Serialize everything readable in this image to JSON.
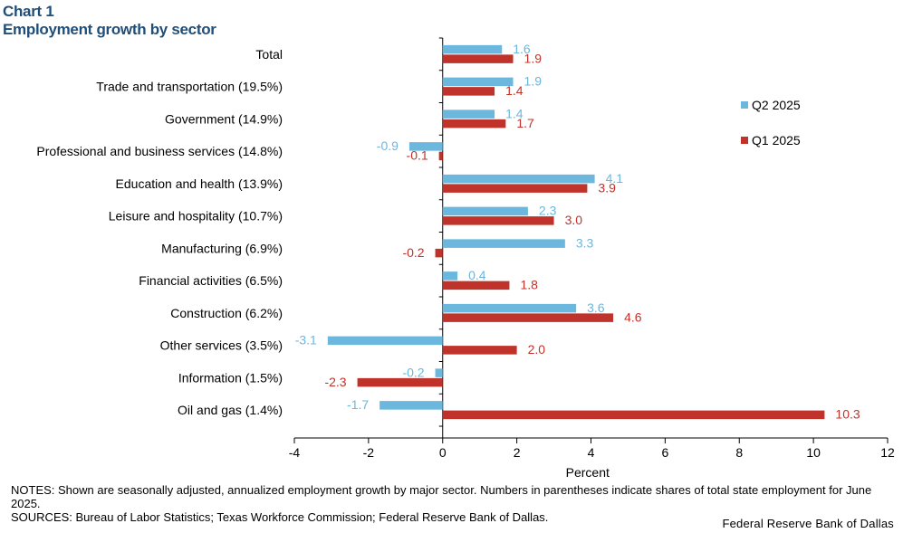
{
  "header": {
    "chart_label": "Chart 1",
    "title": "Employment growth by sector"
  },
  "colors": {
    "q2": "#6bb7dd",
    "q1": "#c0332a",
    "title": "#1f4e79"
  },
  "chart_data": {
    "type": "bar",
    "orientation": "horizontal",
    "title": "Employment growth by sector",
    "xlabel": "Percent",
    "ylabel": "",
    "xlim": [
      -4,
      12
    ],
    "xticks": [
      -4,
      -2,
      0,
      2,
      4,
      6,
      8,
      10,
      12
    ],
    "grid": false,
    "legend_position": "top-right",
    "categories": [
      "Total",
      "Trade and transportation (19.5%)",
      "Government (14.9%)",
      "Professional and business services (14.8%)",
      "Education and health (13.9%)",
      "Leisure and hospitality (10.7%)",
      "Manufacturing (6.9%)",
      "Financial activities (6.5%)",
      "Construction (6.2%)",
      "Other services (3.5%)",
      "Information (1.5%)",
      "Oil and gas (1.4%)"
    ],
    "series": [
      {
        "name": "Q2 2025",
        "values": [
          1.6,
          1.9,
          1.4,
          -0.9,
          4.1,
          2.3,
          3.3,
          0.4,
          3.6,
          -3.1,
          -0.2,
          -1.7
        ],
        "labels": [
          "1.6",
          "1.9",
          "1.4",
          "-0.9",
          "4.1",
          "2.3",
          "3.3",
          "0.4",
          "3.6",
          "-3.1",
          "-0.2",
          "-1.7"
        ]
      },
      {
        "name": "Q1 2025",
        "values": [
          1.9,
          1.4,
          1.7,
          -0.1,
          3.9,
          3.0,
          -0.2,
          1.8,
          4.6,
          2.0,
          -2.3,
          10.3
        ],
        "labels": [
          "1.9",
          "1.4",
          "1.7",
          "-0.1",
          "3.9",
          "3.0",
          "-0.2",
          "1.8",
          "4.6",
          "2.0",
          "-2.3",
          "10.3"
        ]
      }
    ]
  },
  "footer": {
    "notes": "NOTES: Shown are seasonally adjusted, annualized employment growth by major sector. Numbers in parentheses indicate shares of total state employment for June 2025.",
    "sources": "SOURCES: Bureau of Labor Statistics; Texas Workforce Commission; Federal Reserve Bank of Dallas.",
    "credit": "Federal Reserve Bank of Dallas"
  }
}
